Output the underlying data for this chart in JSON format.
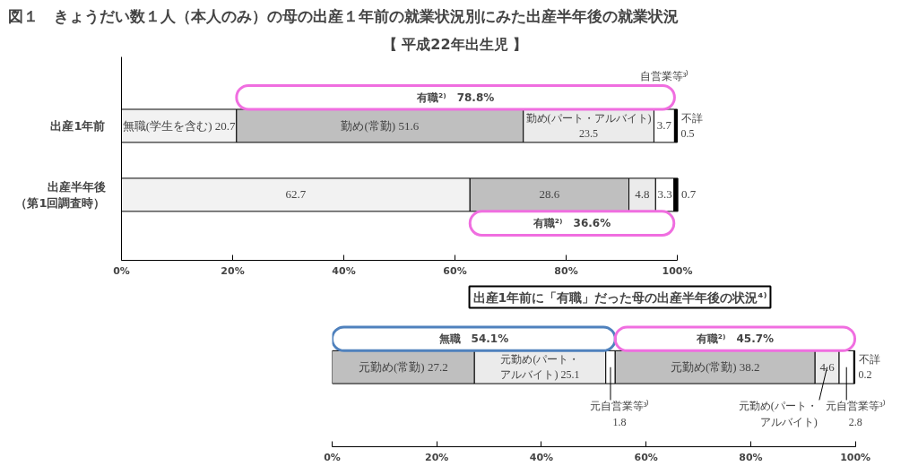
{
  "chart_data": [
    {
      "type": "bar",
      "orientation": "horizontal",
      "stacked": true,
      "title": "図１　きょうだい数１人（本人のみ）の母の出産１年前の就業状況別にみた出産半年後の就業状況",
      "subtitle": "【 平成22年出生児 】",
      "categories": [
        "出産1年前",
        "出産半年後（第1回調査時）"
      ],
      "series": [
        {
          "color": "#f2f2f2",
          "values": [
            20.7,
            62.7
          ],
          "value_labels": [
            "無職(学生を含む) 20.7",
            "62.7"
          ]
        },
        {
          "color": "#bfbfbf",
          "values": [
            51.6,
            28.6
          ],
          "value_labels": [
            "勤め(常勤) 51.6",
            "28.6"
          ]
        },
        {
          "color": "#ebebeb",
          "values": [
            23.5,
            4.8
          ],
          "value_labels": [
            "勤め(パート・アルバイト)\n23.5",
            "4.8"
          ]
        },
        {
          "color": "#ffffff",
          "values": [
            3.7,
            3.3
          ],
          "value_labels": [
            "3.7",
            "3.3"
          ]
        },
        {
          "color": "#000000",
          "values": [
            0.5,
            0.7
          ],
          "value_labels": [
            "不詳\n0.5",
            "0.7"
          ]
        }
      ],
      "xlim": [
        0,
        100
      ],
      "xticks": [
        {
          "value": 0,
          "label": "0%"
        },
        {
          "value": 20,
          "label": "20%"
        },
        {
          "value": 40,
          "label": "40%"
        },
        {
          "value": 60,
          "label": "60%"
        },
        {
          "value": 80,
          "label": "80%"
        },
        {
          "value": 100,
          "label": "100%"
        }
      ],
      "annotations": [
        "有職²⁾　78.8%",
        "有職²⁾　36.6%",
        "自営業等³⁾"
      ],
      "grid": false
    },
    {
      "type": "bar",
      "orientation": "horizontal",
      "stacked": true,
      "title": "出産1年前に「有職」だった母の出産半年後の状況⁴⁾",
      "categories": [
        null
      ],
      "series": [
        {
          "color": "#bfbfbf",
          "values": [
            27.2
          ],
          "value_labels": [
            "元勤め(常勤) 27.2"
          ]
        },
        {
          "color": "#ebebeb",
          "values": [
            25.1
          ],
          "value_labels": [
            "元勤め(パート・アルバイト) 25.1"
          ]
        },
        {
          "color": "#ffffff",
          "values": [
            1.8
          ],
          "value_labels": [
            "元自営業等³⁾\n1.8"
          ]
        },
        {
          "color": "#bfbfbf",
          "values": [
            38.2
          ],
          "value_labels": [
            "元勤め(常勤) 38.2"
          ]
        },
        {
          "color": "#ebebeb",
          "values": [
            4.6
          ],
          "value_labels": [
            "4.6"
          ]
        },
        {
          "color": "#ffffff",
          "values": [
            2.8
          ],
          "value_labels": [
            "元自営業等³⁾\n2.8"
          ]
        },
        {
          "color": "#000000",
          "values": [
            0.2
          ],
          "value_labels": [
            "不詳\n0.2"
          ]
        }
      ],
      "xlim": [
        0,
        100
      ],
      "xticks": [
        {
          "value": 0,
          "label": "0%"
        },
        {
          "value": 20,
          "label": "20%"
        },
        {
          "value": 40,
          "label": "40%"
        },
        {
          "value": 60,
          "label": "60%"
        },
        {
          "value": 80,
          "label": "80%"
        },
        {
          "value": 100,
          "label": "100%"
        }
      ],
      "annotations": [
        "無職　54.1%",
        "有職²⁾　45.7%",
        "元勤め(パート・アルバイト)"
      ],
      "grid": false
    }
  ]
}
